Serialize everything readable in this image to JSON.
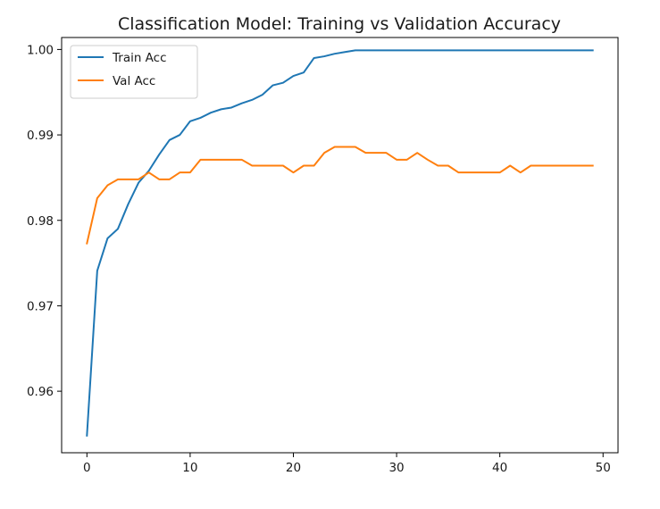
{
  "chart_data": {
    "type": "line",
    "title": "Classification Model: Training vs Validation Accuracy",
    "xlabel": "",
    "ylabel": "",
    "xlim": [
      -2.45,
      51.45
    ],
    "ylim": [
      0.9528,
      1.0014
    ],
    "x_ticks": [
      0,
      10,
      20,
      30,
      40,
      50
    ],
    "y_ticks": [
      0.96,
      0.97,
      0.98,
      0.99,
      1.0
    ],
    "x_tick_labels": [
      "0",
      "10",
      "20",
      "30",
      "40",
      "50"
    ],
    "y_tick_labels": [
      "0.96",
      "0.97",
      "0.98",
      "0.99",
      "1.00"
    ],
    "grid": false,
    "legend_position": "upper-left",
    "x": [
      0,
      1,
      2,
      3,
      4,
      5,
      6,
      7,
      8,
      9,
      10,
      11,
      12,
      13,
      14,
      15,
      16,
      17,
      18,
      19,
      20,
      21,
      22,
      23,
      24,
      25,
      26,
      27,
      28,
      29,
      30,
      31,
      32,
      33,
      34,
      35,
      36,
      37,
      38,
      39,
      40,
      41,
      42,
      43,
      44,
      45,
      46,
      47,
      48,
      49
    ],
    "series": [
      {
        "name": "Train Acc",
        "color": "#1f77b4",
        "values": [
          0.9548,
          0.9741,
          0.9779,
          0.979,
          0.9819,
          0.9844,
          0.9858,
          0.9877,
          0.9894,
          0.99,
          0.9916,
          0.992,
          0.9926,
          0.993,
          0.9932,
          0.9937,
          0.9941,
          0.9947,
          0.9958,
          0.9961,
          0.9969,
          0.9973,
          0.999,
          0.9992,
          0.9995,
          0.9997,
          0.9999,
          0.9999,
          0.9999,
          0.9999,
          0.9999,
          0.9999,
          0.9999,
          0.9999,
          0.9999,
          0.9999,
          0.9999,
          0.9999,
          0.9999,
          0.9999,
          0.9999,
          0.9999,
          0.9999,
          0.9999,
          0.9999,
          0.9999,
          0.9999,
          0.9999,
          0.9999,
          0.9999
        ]
      },
      {
        "name": "Val Acc",
        "color": "#ff7f0e",
        "values": [
          0.9773,
          0.9826,
          0.9841,
          0.9848,
          0.9848,
          0.9848,
          0.9856,
          0.9848,
          0.9848,
          0.9856,
          0.9856,
          0.9871,
          0.9871,
          0.9871,
          0.9871,
          0.9871,
          0.9864,
          0.9864,
          0.9864,
          0.9864,
          0.9856,
          0.9864,
          0.9864,
          0.9879,
          0.9886,
          0.9886,
          0.9886,
          0.9879,
          0.9879,
          0.9879,
          0.9871,
          0.9871,
          0.9879,
          0.9871,
          0.9864,
          0.9864,
          0.9856,
          0.9856,
          0.9856,
          0.9856,
          0.9856,
          0.9864,
          0.9856,
          0.9864,
          0.9864,
          0.9864,
          0.9864,
          0.9864,
          0.9864,
          0.9864
        ]
      }
    ]
  }
}
